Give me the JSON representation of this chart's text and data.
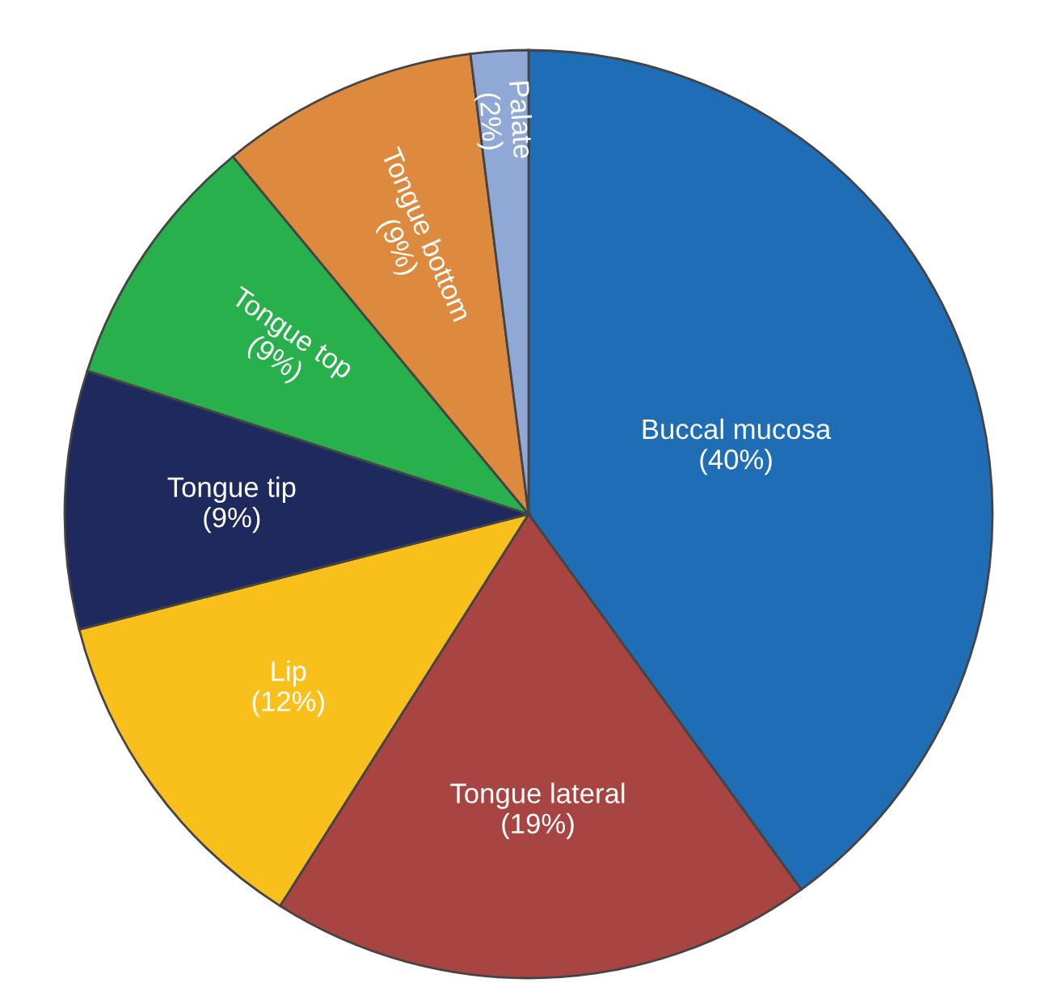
{
  "chart_data": {
    "type": "pie",
    "categories": [
      "Buccal mucosa",
      "Tongue lateral",
      "Lip",
      "Tongue tip",
      "Tongue top",
      "Tongue bottom",
      "Palate"
    ],
    "values": [
      40,
      19,
      12,
      9,
      9,
      9,
      2
    ],
    "value_labels": [
      "(40%)",
      "(19%)",
      "(12%)",
      "(9%)",
      "(9%)",
      "(9%)",
      "(2%)"
    ],
    "colors": [
      "#1f6db5",
      "#a84442",
      "#f9bf1a",
      "#1e2a5e",
      "#27b04b",
      "#dd8a3e",
      "#8fa8d6"
    ]
  }
}
